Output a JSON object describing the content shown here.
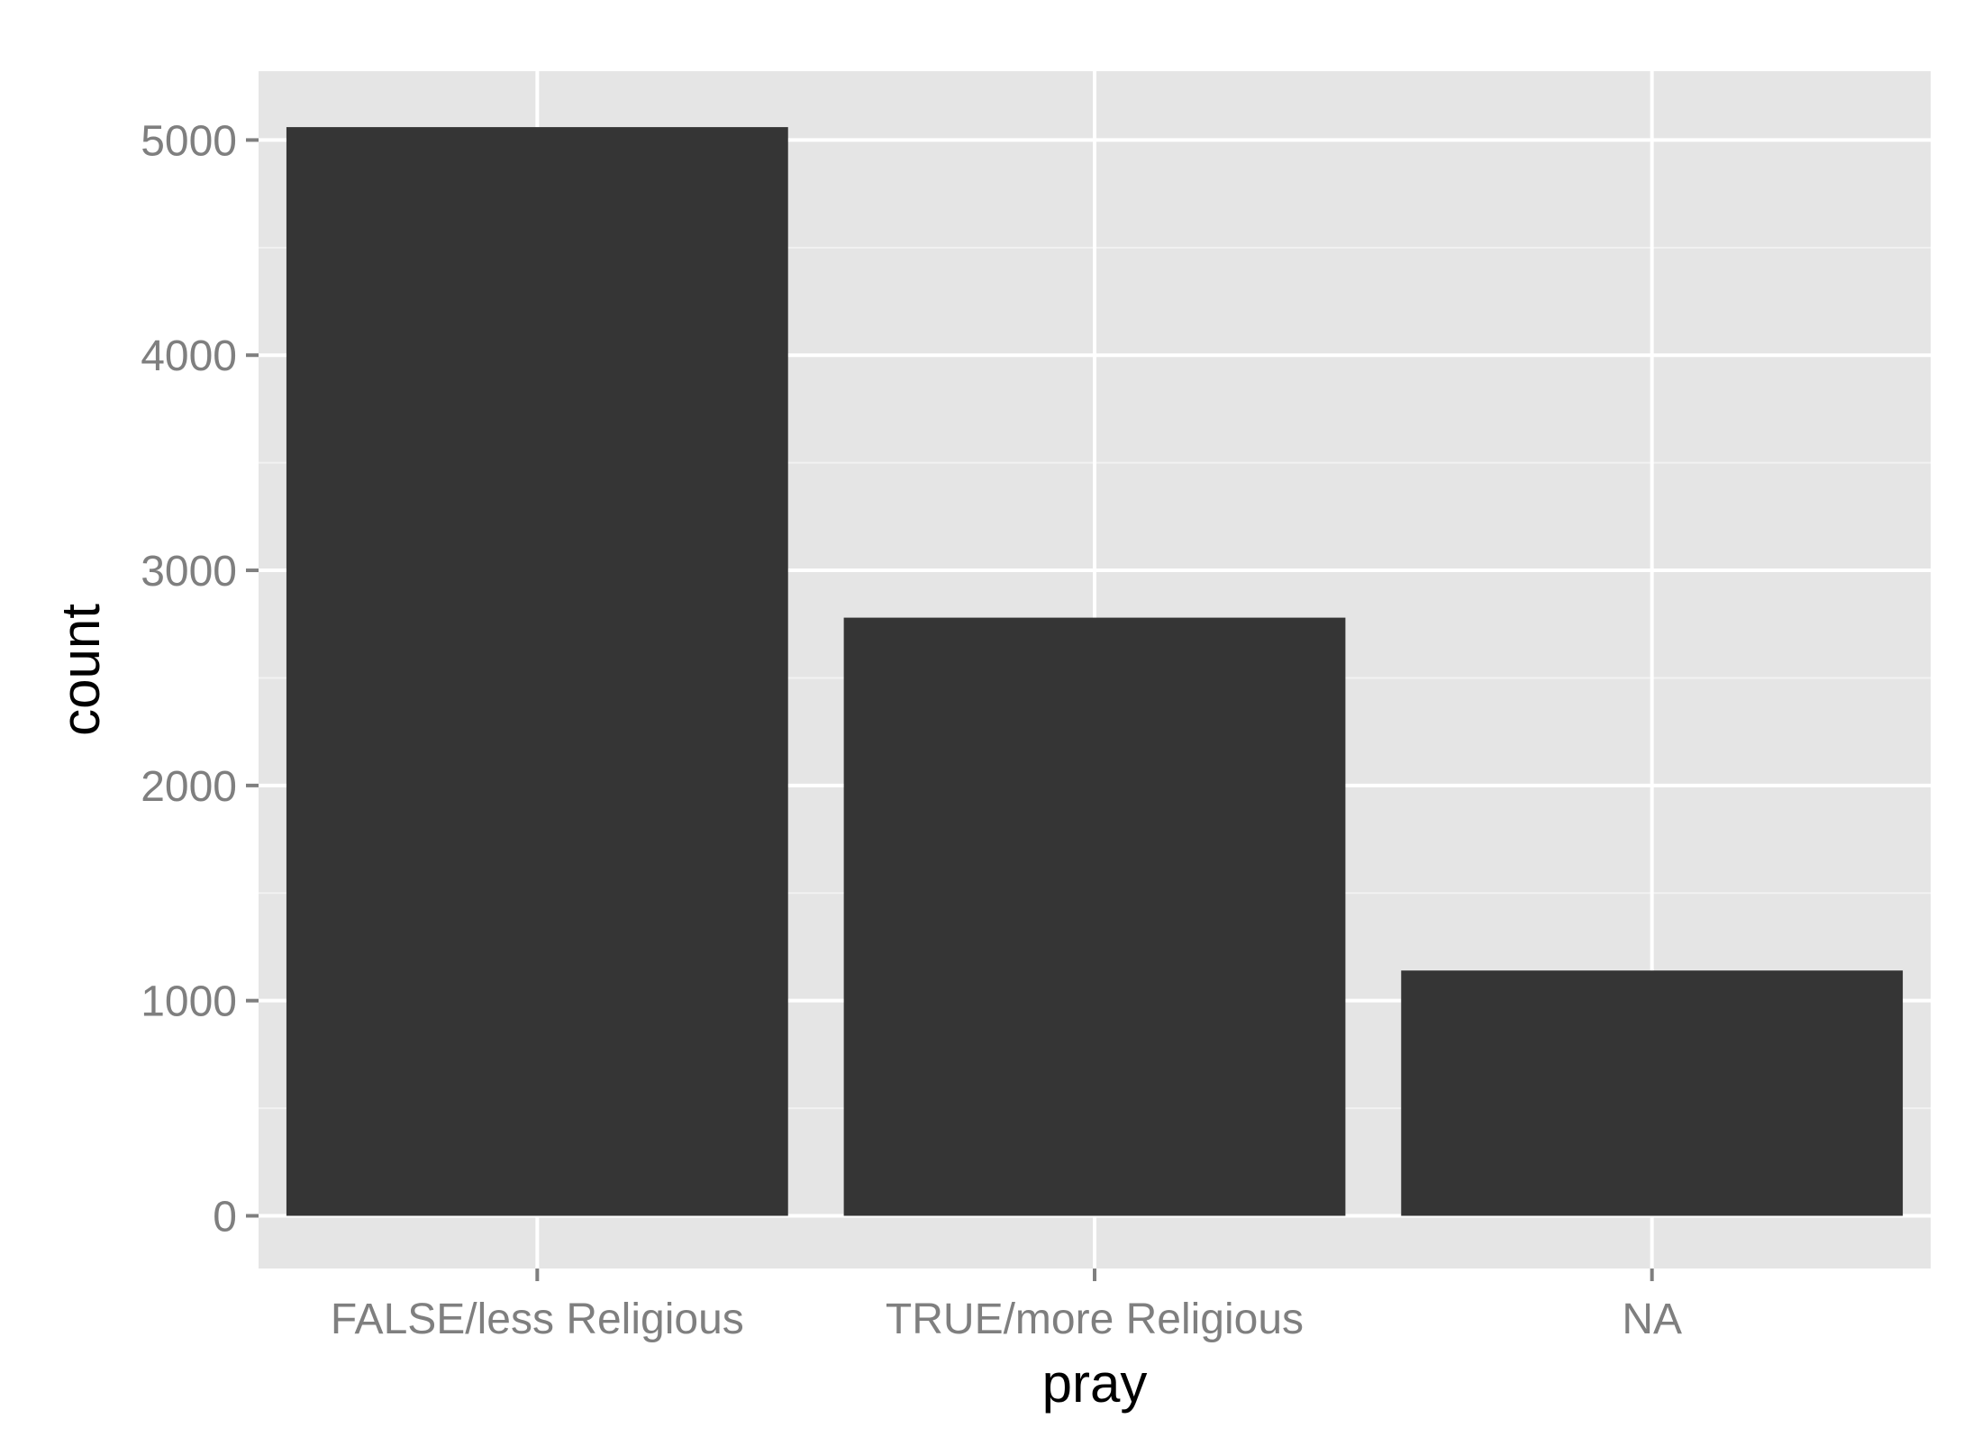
{
  "colors": {
    "panel_background": "#e5e5e5",
    "grid_major": "#ffffff",
    "grid_minor": "#f2f2f2",
    "bar_fill": "#353535",
    "tick_label": "#7f7f7f",
    "axis_title": "#000000"
  },
  "chart_data": {
    "type": "bar",
    "categories": [
      "FALSE/less Religious",
      "TRUE/more Religious",
      "NA"
    ],
    "values": [
      5060,
      2780,
      1140
    ],
    "xlabel": "pray",
    "ylabel": "count",
    "ylim": [
      -245,
      5320
    ],
    "yticks": [
      0,
      1000,
      2000,
      3000,
      4000,
      5000
    ],
    "ytick_labels": [
      "0",
      "1000",
      "2000",
      "3000",
      "4000",
      "5000"
    ],
    "grid": true,
    "legend": "none"
  }
}
